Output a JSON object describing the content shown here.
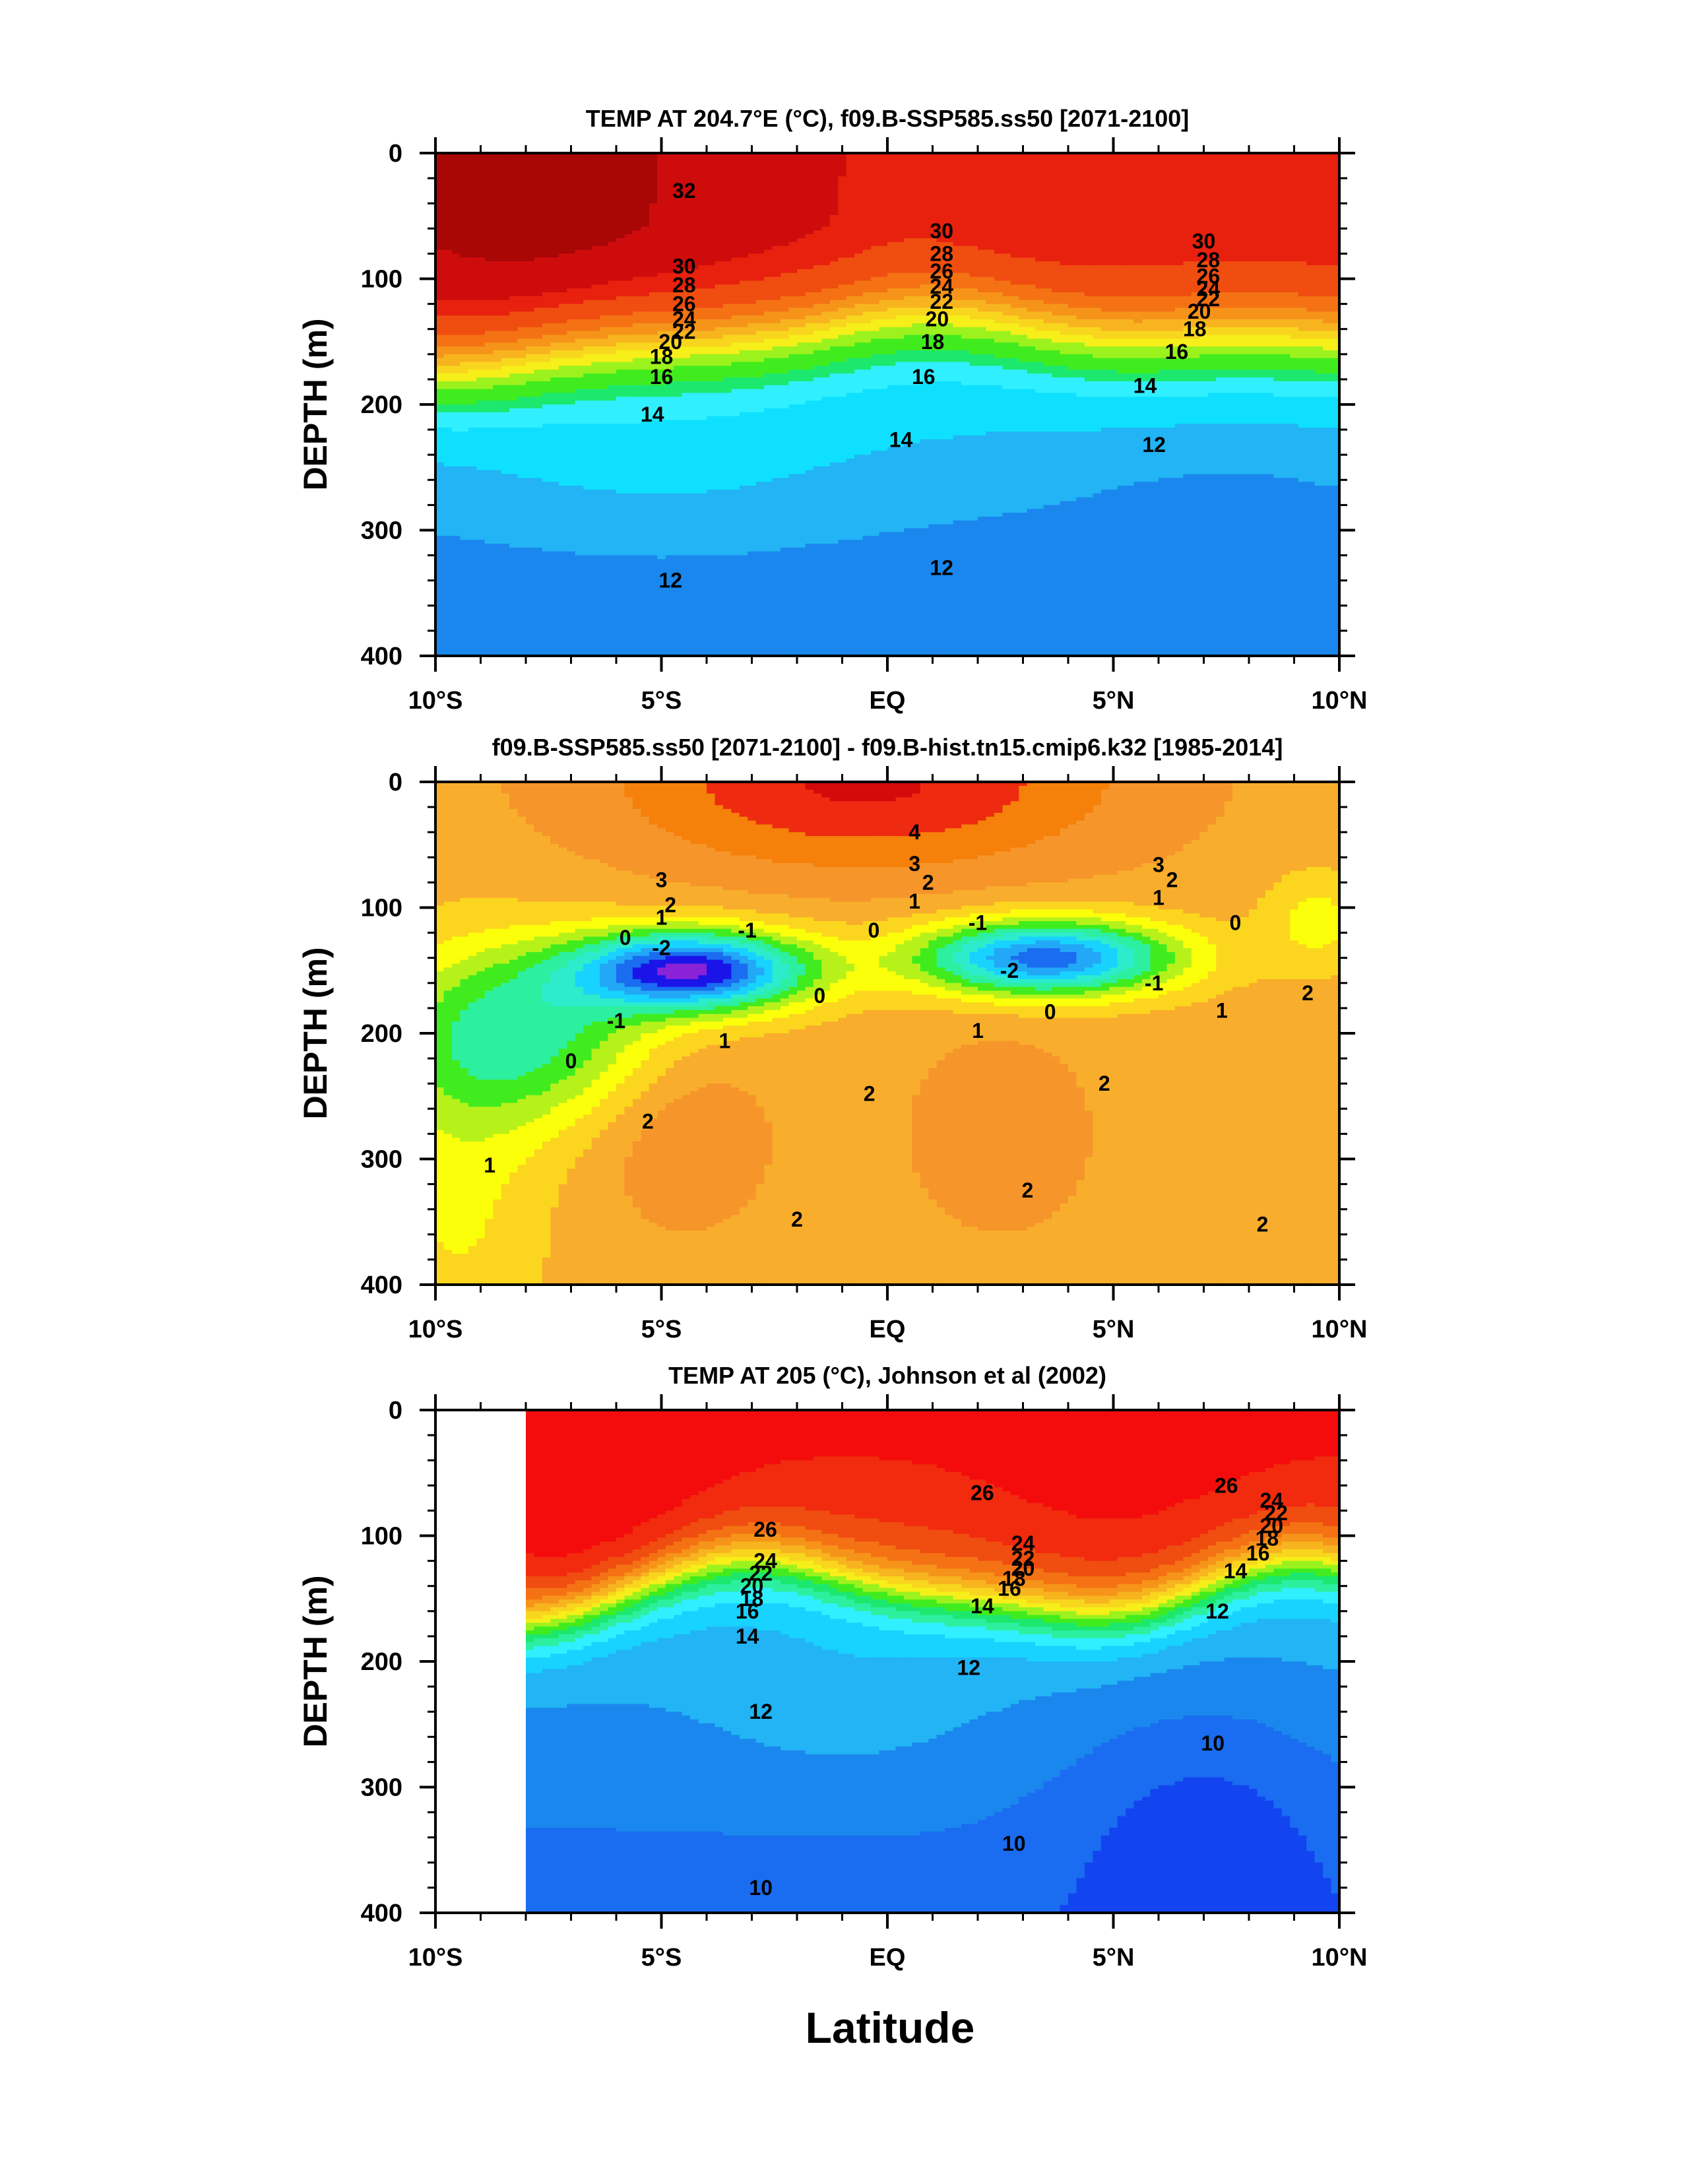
{
  "figure": {
    "xlabel": "Latitude",
    "x_ticks": [
      "10°S",
      "5°S",
      "EQ",
      "5°N",
      "10°N"
    ],
    "y_ticks": [
      "0",
      "100",
      "200",
      "300",
      "400"
    ]
  },
  "chart_data": [
    {
      "type": "heatmap",
      "title": "TEMP AT 204.7°E (°C), f09.B-SSP585.ss50 [2071-2100]",
      "ylabel": "DEPTH (m)",
      "xlim": [
        -10,
        10
      ],
      "ylim": [
        400,
        0
      ],
      "x_axis": "latitude (negative = south)",
      "y_axis": "depth in m, increasing downward",
      "colors": [
        "#1a87ee",
        "#22b4f5",
        "#0fe0ff",
        "#30f0ff",
        "#1ce86e",
        "#41ec1e",
        "#9cf21d",
        "#f6ef19",
        "#f9d61e",
        "#f7b41f",
        "#f6941a",
        "#f47214",
        "#f04d10",
        "#e8200e",
        "#cf0c0c",
        "#a90606"
      ],
      "levels": [
        10,
        11,
        12,
        13,
        14,
        16,
        18,
        20,
        22,
        24,
        26,
        28,
        30,
        31,
        32
      ],
      "contour_labels": [
        {
          "text": "32",
          "lat": -4.5,
          "depth": 30
        },
        {
          "text": "30",
          "lat": -4.5,
          "depth": 90
        },
        {
          "text": "28",
          "lat": -4.5,
          "depth": 105
        },
        {
          "text": "26",
          "lat": -4.5,
          "depth": 120
        },
        {
          "text": "24",
          "lat": -4.5,
          "depth": 132
        },
        {
          "text": "22",
          "lat": -4.5,
          "depth": 142
        },
        {
          "text": "20",
          "lat": -4.8,
          "depth": 150
        },
        {
          "text": "18",
          "lat": -5.0,
          "depth": 162
        },
        {
          "text": "16",
          "lat": -5.0,
          "depth": 178
        },
        {
          "text": "14",
          "lat": -5.2,
          "depth": 208
        },
        {
          "text": "12",
          "lat": -4.8,
          "depth": 340
        },
        {
          "text": "30",
          "lat": 1.2,
          "depth": 62
        },
        {
          "text": "28",
          "lat": 1.2,
          "depth": 80
        },
        {
          "text": "26",
          "lat": 1.2,
          "depth": 94
        },
        {
          "text": "24",
          "lat": 1.2,
          "depth": 106
        },
        {
          "text": "22",
          "lat": 1.2,
          "depth": 118
        },
        {
          "text": "20",
          "lat": 1.1,
          "depth": 132
        },
        {
          "text": "18",
          "lat": 1.0,
          "depth": 150
        },
        {
          "text": "16",
          "lat": 0.8,
          "depth": 178
        },
        {
          "text": "14",
          "lat": 0.3,
          "depth": 228
        },
        {
          "text": "12",
          "lat": 1.2,
          "depth": 330
        },
        {
          "text": "30",
          "lat": 7.0,
          "depth": 70
        },
        {
          "text": "28",
          "lat": 7.1,
          "depth": 85
        },
        {
          "text": "26",
          "lat": 7.1,
          "depth": 98
        },
        {
          "text": "24",
          "lat": 7.1,
          "depth": 108
        },
        {
          "text": "22",
          "lat": 7.1,
          "depth": 116
        },
        {
          "text": "20",
          "lat": 6.9,
          "depth": 126
        },
        {
          "text": "18",
          "lat": 6.8,
          "depth": 140
        },
        {
          "text": "16",
          "lat": 6.4,
          "depth": 158
        },
        {
          "text": "14",
          "lat": 5.7,
          "depth": 185
        },
        {
          "text": "12",
          "lat": 5.9,
          "depth": 232
        }
      ]
    },
    {
      "type": "heatmap",
      "title": "f09.B-SSP585.ss50 [2071-2100] - f09.B-hist.tn15.cmip6.k32 [1985-2014]",
      "ylabel": "DEPTH (m)",
      "xlim": [
        -10,
        10
      ],
      "ylim": [
        400,
        0
      ],
      "x_axis": "latitude (negative = south)",
      "y_axis": "depth in m, increasing downward",
      "colors": [
        "#8a22d8",
        "#1a14e8",
        "#1a6cf0",
        "#22a8f6",
        "#18d2ff",
        "#2ceccc",
        "#2cf0a0",
        "#41ec1e",
        "#b6f21a",
        "#fbff0a",
        "#fcd61e",
        "#f9ad2c",
        "#f6952a",
        "#f5800a",
        "#ee2a10",
        "#d20a0a"
      ],
      "levels": [
        -3,
        -2.5,
        -2,
        -1.5,
        -1,
        -0.5,
        0,
        0.5,
        1,
        1.5,
        2,
        2.5,
        3,
        3.5,
        4
      ],
      "contour_labels": [
        {
          "text": "4",
          "lat": 0.6,
          "depth": 40
        },
        {
          "text": "3",
          "lat": -5.0,
          "depth": 78
        },
        {
          "text": "2",
          "lat": -4.8,
          "depth": 98
        },
        {
          "text": "1",
          "lat": -5.0,
          "depth": 108
        },
        {
          "text": "0",
          "lat": -5.8,
          "depth": 124
        },
        {
          "text": "-2",
          "lat": -5.0,
          "depth": 132
        },
        {
          "text": "-1",
          "lat": -3.1,
          "depth": 118
        },
        {
          "text": "0",
          "lat": -1.5,
          "depth": 170
        },
        {
          "text": "-1",
          "lat": -6.0,
          "depth": 190
        },
        {
          "text": "0",
          "lat": -7.0,
          "depth": 222
        },
        {
          "text": "1",
          "lat": -3.6,
          "depth": 206
        },
        {
          "text": "1",
          "lat": -8.8,
          "depth": 305
        },
        {
          "text": "2",
          "lat": -5.3,
          "depth": 270
        },
        {
          "text": "3",
          "lat": 0.6,
          "depth": 65
        },
        {
          "text": "2",
          "lat": 0.9,
          "depth": 80
        },
        {
          "text": "1",
          "lat": 0.6,
          "depth": 95
        },
        {
          "text": "0",
          "lat": -0.3,
          "depth": 118
        },
        {
          "text": "-1",
          "lat": 2.0,
          "depth": 112
        },
        {
          "text": "-2",
          "lat": 2.7,
          "depth": 150
        },
        {
          "text": "3",
          "lat": 6.0,
          "depth": 66
        },
        {
          "text": "2",
          "lat": 6.3,
          "depth": 78
        },
        {
          "text": "1",
          "lat": 6.0,
          "depth": 92
        },
        {
          "text": "0",
          "lat": 7.7,
          "depth": 112
        },
        {
          "text": "-1",
          "lat": 5.9,
          "depth": 160
        },
        {
          "text": "0",
          "lat": 3.6,
          "depth": 183
        },
        {
          "text": "1",
          "lat": 2.0,
          "depth": 198
        },
        {
          "text": "1",
          "lat": 7.4,
          "depth": 182
        },
        {
          "text": "2",
          "lat": 9.3,
          "depth": 168
        },
        {
          "text": "2",
          "lat": -0.4,
          "depth": 248
        },
        {
          "text": "2",
          "lat": 4.8,
          "depth": 240
        },
        {
          "text": "2",
          "lat": 3.1,
          "depth": 325
        },
        {
          "text": "2",
          "lat": -2.0,
          "depth": 348
        },
        {
          "text": "2",
          "lat": 8.3,
          "depth": 352
        }
      ]
    },
    {
      "type": "heatmap",
      "title": "TEMP AT 205 (°C), Johnson et al (2002)",
      "ylabel": "DEPTH (m)",
      "xlim": [
        -10,
        10
      ],
      "ylim": [
        400,
        0
      ],
      "x_axis": "latitude (negative = south)",
      "y_axis": "depth in m, increasing downward",
      "data_extent_lat": [
        -8,
        10
      ],
      "colors": [
        "#1244f0",
        "#1a6cf0",
        "#1a87ee",
        "#22b4f5",
        "#18d2ff",
        "#30f0ff",
        "#2cf0a0",
        "#1ce86e",
        "#41ec1e",
        "#9cf21d",
        "#f6ef19",
        "#f9d61e",
        "#f7b41f",
        "#f6941a",
        "#f47214",
        "#f04d10",
        "#f22a0e",
        "#f40c0c"
      ],
      "levels": [
        10,
        11,
        12,
        13,
        14,
        15,
        16,
        17,
        18,
        19,
        20,
        21,
        22,
        23,
        24,
        25,
        26
      ],
      "contour_labels": [
        {
          "text": "26",
          "lat": -2.7,
          "depth": 95
        },
        {
          "text": "24",
          "lat": -2.7,
          "depth": 120
        },
        {
          "text": "22",
          "lat": -2.8,
          "depth": 130
        },
        {
          "text": "20",
          "lat": -3.0,
          "depth": 140
        },
        {
          "text": "18",
          "lat": -3.0,
          "depth": 150
        },
        {
          "text": "16",
          "lat": -3.1,
          "depth": 160
        },
        {
          "text": "14",
          "lat": -3.1,
          "depth": 180
        },
        {
          "text": "12",
          "lat": -2.8,
          "depth": 240
        },
        {
          "text": "10",
          "lat": -2.8,
          "depth": 380
        },
        {
          "text": "26",
          "lat": 2.1,
          "depth": 66
        },
        {
          "text": "24",
          "lat": 3.0,
          "depth": 106
        },
        {
          "text": "22",
          "lat": 3.0,
          "depth": 118
        },
        {
          "text": "20",
          "lat": 3.0,
          "depth": 126
        },
        {
          "text": "18",
          "lat": 2.8,
          "depth": 134
        },
        {
          "text": "16",
          "lat": 2.7,
          "depth": 142
        },
        {
          "text": "14",
          "lat": 2.1,
          "depth": 156
        },
        {
          "text": "12",
          "lat": 1.8,
          "depth": 205
        },
        {
          "text": "10",
          "lat": 2.8,
          "depth": 345
        },
        {
          "text": "10",
          "lat": 7.2,
          "depth": 265
        },
        {
          "text": "26",
          "lat": 7.5,
          "depth": 60
        },
        {
          "text": "24",
          "lat": 8.5,
          "depth": 72
        },
        {
          "text": "22",
          "lat": 8.6,
          "depth": 82
        },
        {
          "text": "20",
          "lat": 8.5,
          "depth": 92
        },
        {
          "text": "18",
          "lat": 8.4,
          "depth": 102
        },
        {
          "text": "16",
          "lat": 8.2,
          "depth": 114
        },
        {
          "text": "14",
          "lat": 7.7,
          "depth": 128
        },
        {
          "text": "12",
          "lat": 7.3,
          "depth": 160
        }
      ]
    }
  ]
}
